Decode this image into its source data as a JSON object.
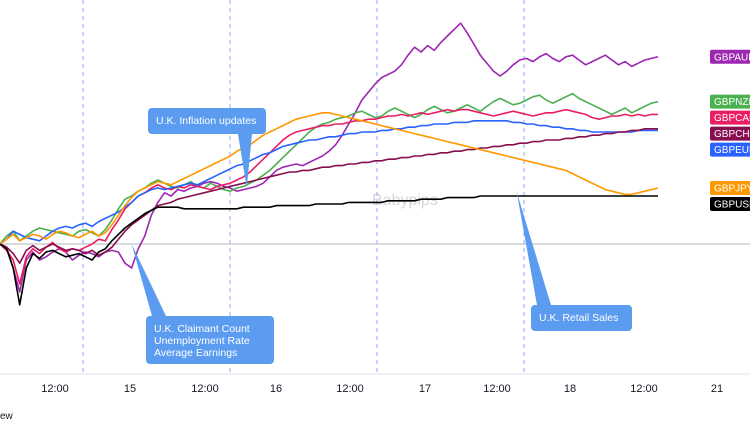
{
  "chart_data": {
    "type": "line",
    "title": "",
    "xlabel": "",
    "ylabel": "",
    "x_tick_labels": [
      "12:00",
      "15",
      "12:00",
      "16",
      "12:00",
      "17",
      "12:00",
      "18",
      "12:00",
      "21"
    ],
    "xlim": [
      0,
      100
    ],
    "ylim": [
      -8,
      14
    ],
    "baseline": 0,
    "grid": false,
    "session_dividers": true,
    "legend_placement": "right",
    "watermark": "Babypips",
    "footer_text": "ew",
    "series": [
      {
        "name": "GBPAUD",
        "color": "#9c27b0",
        "values": [
          0,
          -0.2,
          -1.5,
          -3,
          -1,
          -0.5,
          -1,
          -0.8,
          -0.5,
          -0.3,
          -0.5,
          -1,
          -0.7,
          -0.5,
          -0.6,
          -0.8,
          -0.5,
          -0.4,
          -0.5,
          -1.2,
          -1.5,
          -0.3,
          0.5,
          1.8,
          2.6,
          3.2,
          3.0,
          3.4,
          3.3,
          3.5,
          3.6,
          3.8,
          3.9,
          3.8,
          3.6,
          3.5,
          3.3,
          3.4,
          3.5,
          3.6,
          3.8,
          4.2,
          4.6,
          4.8,
          4.9,
          5.0,
          4.9,
          5.1,
          5.3,
          5.5,
          5.8,
          6.2,
          6.8,
          7.5,
          8.2,
          9.0,
          9.5,
          10.0,
          10.4,
          10.6,
          10.8,
          11.2,
          11.8,
          12.3,
          12.0,
          12.4,
          12.1,
          12.6,
          13.0,
          13.4,
          13.8,
          13.2,
          12.5,
          11.8,
          11.3,
          10.8,
          10.5,
          10.8,
          11.2,
          11.5,
          11.6,
          11.4,
          11.7,
          11.9,
          11.6,
          11.4,
          11.7,
          11.8,
          11.5,
          11.2,
          11.4,
          11.6,
          11.8,
          11.5,
          11.2,
          11.4,
          11.1,
          11.3,
          11.5,
          11.6,
          11.7
        ]
      },
      {
        "name": "GBPNZD",
        "color": "#4caf50",
        "values": [
          0,
          0.5,
          0.8,
          0.2,
          0.5,
          0.8,
          1.0,
          0.9,
          0.8,
          0.7,
          0.6,
          0.5,
          0.8,
          0.9,
          0.7,
          0.5,
          0.9,
          1.5,
          2.2,
          2.8,
          3.0,
          3.3,
          3.5,
          3.8,
          4.0,
          3.8,
          3.6,
          3.5,
          3.7,
          3.9,
          3.6,
          3.5,
          3.8,
          3.6,
          3.4,
          3.3,
          3.5,
          3.6,
          3.8,
          4.0,
          4.3,
          4.6,
          5.0,
          5.4,
          5.8,
          6.2,
          6.6,
          7.0,
          7.3,
          7.5,
          7.6,
          7.8,
          7.9,
          8.0,
          8.2,
          8.3,
          8.1,
          7.9,
          8.0,
          8.3,
          8.5,
          8.3,
          8.1,
          7.9,
          8.1,
          8.4,
          8.6,
          8.4,
          8.2,
          8.3,
          8.5,
          8.7,
          8.5,
          8.3,
          8.6,
          8.9,
          9.1,
          8.9,
          8.7,
          8.8,
          9.0,
          9.2,
          9.3,
          9.0,
          8.8,
          9.0,
          9.2,
          9.4,
          9.1,
          8.9,
          8.7,
          8.5,
          8.3,
          8.1,
          8.3,
          8.5,
          8.2,
          8.4,
          8.6,
          8.8,
          8.9
        ]
      },
      {
        "name": "GBPCAD",
        "color": "#e91e63",
        "values": [
          0,
          -0.4,
          -1,
          -2.5,
          -0.8,
          -0.3,
          -0.6,
          -0.2,
          0.1,
          -0.3,
          -0.5,
          -0.3,
          -0.4,
          -0.2,
          0,
          0.3,
          0.2,
          0.9,
          1.5,
          2.2,
          2.6,
          3.0,
          3.2,
          3.5,
          3.7,
          3.5,
          3.4,
          3.6,
          3.5,
          3.7,
          3.6,
          3.5,
          3.4,
          3.6,
          3.7,
          3.8,
          4.0,
          4.2,
          4.5,
          4.9,
          5.3,
          5.7,
          6.1,
          6.5,
          6.8,
          7.0,
          7.1,
          7.2,
          7.3,
          7.4,
          7.4,
          7.5,
          7.5,
          7.6,
          7.7,
          7.7,
          7.8,
          7.8,
          7.9,
          8.0,
          8.0,
          8.1,
          8.0,
          8.1,
          8.2,
          8.1,
          8.2,
          8.3,
          8.4,
          8.3,
          8.4,
          8.4,
          8.3,
          8.2,
          8.1,
          8.0,
          8.1,
          8.2,
          8.3,
          8.2,
          8.1,
          8.0,
          8.1,
          8.2,
          8.2,
          8.3,
          8.4,
          8.3,
          8.2,
          8.1,
          7.9,
          7.8,
          7.9,
          8.0,
          8.0,
          8.1,
          8.0,
          8.1,
          8.0,
          8.1,
          8.1
        ]
      },
      {
        "name": "GBPEUR",
        "color": "#2962ff",
        "values": [
          0,
          0.3,
          0.8,
          0.6,
          0.4,
          0.3,
          0.2,
          0.5,
          0.8,
          1.0,
          1.1,
          1.0,
          1.2,
          1.3,
          1.1,
          1.4,
          1.6,
          1.8,
          2.0,
          2.3,
          2.6,
          3.0,
          3.2,
          3.4,
          3.5,
          3.4,
          3.5,
          3.6,
          3.7,
          3.8,
          3.7,
          3.9,
          4.1,
          4.3,
          4.5,
          4.7,
          4.9,
          5.0,
          5.2,
          5.4,
          5.6,
          5.7,
          5.9,
          6.1,
          6.2,
          6.3,
          6.4,
          6.5,
          6.5,
          6.6,
          6.7,
          6.7,
          6.8,
          6.9,
          6.9,
          7.0,
          7.0,
          7.0,
          7.1,
          7.1,
          7.2,
          7.2,
          7.3,
          7.3,
          7.4,
          7.4,
          7.5,
          7.5,
          7.5,
          7.6,
          7.6,
          7.6,
          7.7,
          7.7,
          7.7,
          7.7,
          7.7,
          7.7,
          7.6,
          7.6,
          7.5,
          7.5,
          7.4,
          7.4,
          7.3,
          7.3,
          7.2,
          7.2,
          7.1,
          7.1,
          7.0,
          7.0,
          7.0,
          7.0,
          7.0,
          7.0,
          7.0,
          7.1,
          7.1,
          7.1,
          7.1
        ]
      },
      {
        "name": "GBPCHF",
        "color": "#880e4f",
        "values": [
          0,
          -0.2,
          -0.6,
          -1.2,
          -0.4,
          -0.1,
          -0.4,
          -0.2,
          0,
          -0.2,
          -0.4,
          -0.3,
          -0.4,
          -0.6,
          -0.4,
          -0.7,
          -0.5,
          -0.2,
          0.3,
          0.8,
          1.2,
          1.5,
          1.8,
          2.1,
          2.4,
          2.5,
          2.6,
          2.8,
          2.9,
          3.0,
          3.1,
          3.2,
          3.3,
          3.4,
          3.5,
          3.6,
          3.7,
          3.8,
          3.9,
          4.0,
          4.1,
          4.2,
          4.3,
          4.4,
          4.5,
          4.5,
          4.6,
          4.6,
          4.7,
          4.8,
          4.8,
          4.9,
          4.9,
          5.0,
          5.0,
          5.1,
          5.1,
          5.2,
          5.2,
          5.3,
          5.3,
          5.4,
          5.4,
          5.5,
          5.5,
          5.6,
          5.6,
          5.7,
          5.7,
          5.8,
          5.8,
          5.9,
          5.9,
          6.0,
          6.0,
          6.1,
          6.1,
          6.2,
          6.2,
          6.3,
          6.3,
          6.4,
          6.4,
          6.5,
          6.5,
          6.5,
          6.6,
          6.6,
          6.7,
          6.7,
          6.8,
          6.8,
          6.9,
          6.9,
          7.0,
          7.0,
          7.1,
          7.1,
          7.2,
          7.2,
          7.2
        ]
      },
      {
        "name": "GBPJPY",
        "color": "#ff9800",
        "values": [
          0,
          0.3,
          0.6,
          0.2,
          0.4,
          0.6,
          0.5,
          0.3,
          0.6,
          0.8,
          0.7,
          0.5,
          0.4,
          0.6,
          0.8,
          0.5,
          0.7,
          1.2,
          1.8,
          2.4,
          2.9,
          3.3,
          3.5,
          3.7,
          3.9,
          3.8,
          3.7,
          3.9,
          4.1,
          4.3,
          4.5,
          4.7,
          4.9,
          5.1,
          5.3,
          5.5,
          5.8,
          6.0,
          6.2,
          6.5,
          6.8,
          7.0,
          7.2,
          7.4,
          7.6,
          7.8,
          7.9,
          8.0,
          8.1,
          8.2,
          8.2,
          8.1,
          8.0,
          7.9,
          7.8,
          7.7,
          7.6,
          7.5,
          7.4,
          7.3,
          7.2,
          7.1,
          7.0,
          6.9,
          6.8,
          6.7,
          6.6,
          6.5,
          6.4,
          6.3,
          6.2,
          6.1,
          6.0,
          5.9,
          5.8,
          5.7,
          5.6,
          5.5,
          5.4,
          5.3,
          5.2,
          5.1,
          5.0,
          4.9,
          4.8,
          4.7,
          4.6,
          4.4,
          4.2,
          4.0,
          3.8,
          3.6,
          3.4,
          3.3,
          3.2,
          3.1,
          3.1,
          3.2,
          3.3,
          3.4,
          3.5
        ]
      },
      {
        "name": "GBPUSD",
        "color": "#000000",
        "values": [
          0,
          -0.3,
          -1.5,
          -3.8,
          -1.5,
          -0.6,
          -0.9,
          -0.5,
          -0.4,
          -0.6,
          -0.8,
          -0.7,
          -0.6,
          -0.8,
          -1.0,
          -0.5,
          -0.3,
          0.2,
          0.6,
          1.0,
          1.3,
          1.6,
          1.9,
          2.1,
          2.3,
          2.3,
          2.3,
          2.3,
          2.2,
          2.2,
          2.2,
          2.2,
          2.2,
          2.2,
          2.2,
          2.2,
          2.2,
          2.3,
          2.3,
          2.3,
          2.3,
          2.3,
          2.4,
          2.4,
          2.4,
          2.4,
          2.4,
          2.4,
          2.5,
          2.5,
          2.5,
          2.5,
          2.5,
          2.6,
          2.6,
          2.6,
          2.6,
          2.6,
          2.6,
          2.7,
          2.7,
          2.7,
          2.7,
          2.7,
          2.8,
          2.8,
          2.8,
          2.8,
          2.9,
          2.9,
          2.9,
          2.9,
          2.9,
          3.0,
          3.0,
          3.0,
          3.0,
          3.0,
          3.0,
          3.0,
          3.0,
          3.0,
          3.0,
          3.0,
          3.0,
          3.0,
          3.0,
          3.0,
          3.0,
          3.0,
          3.0,
          3.0,
          3.0,
          3.0,
          3.0,
          3.0,
          3.0,
          3.0,
          3.0,
          3.0,
          3.0
        ]
      }
    ],
    "annotations": [
      {
        "text_lines": [
          "U.K. Inflation updates"
        ],
        "x": 37.5,
        "y": 3.5
      },
      {
        "text_lines": [
          "U.K. Claimant Count",
          "Unemployment Rate",
          "Average Earnings"
        ],
        "x": 20,
        "y": 0
      },
      {
        "text_lines": [
          "U.K. Retail Sales"
        ],
        "x": 78.5,
        "y": 3.3
      }
    ]
  }
}
